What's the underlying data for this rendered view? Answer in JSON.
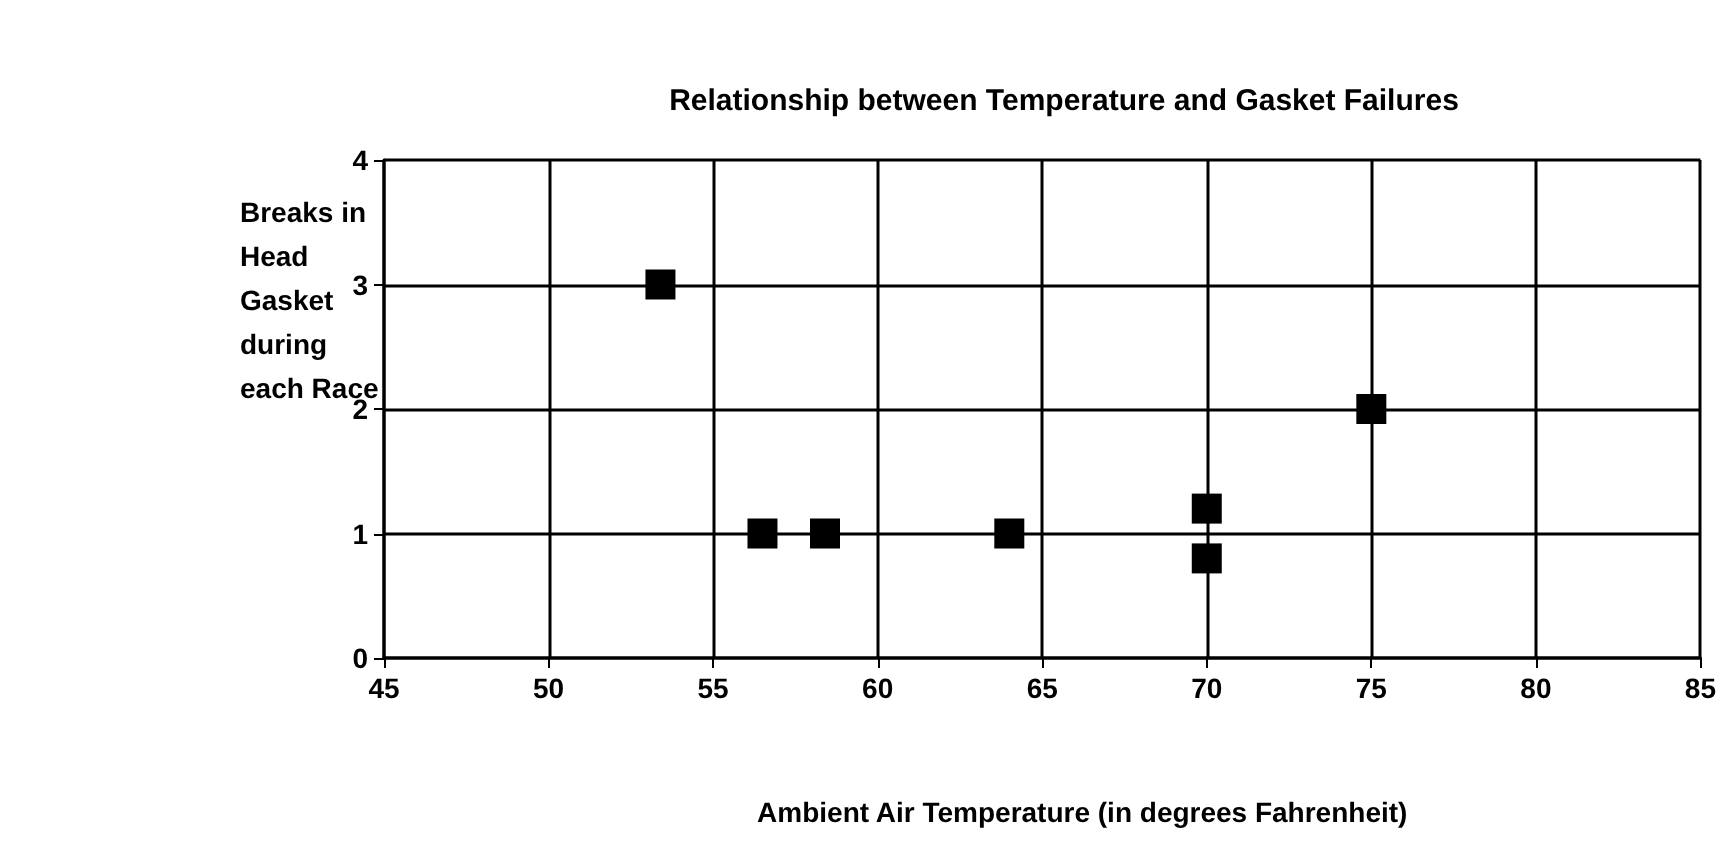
{
  "chart_data": {
    "type": "scatter",
    "title": "Relationship between Temperature and Gasket Failures",
    "xlabel": "Ambient Air Temperature (in degrees Fahrenheit)",
    "ylabel": "Breaks in Head Gasket during each Race",
    "x": [
      53.4,
      56.5,
      58.4,
      64,
      70,
      70,
      75
    ],
    "series": [
      {
        "color": "#000000",
        "values": [
          3,
          1,
          1,
          1,
          1.2,
          0.8,
          2
        ]
      }
    ],
    "xlim": [
      45,
      85
    ],
    "xticks": [
      45,
      50,
      55,
      60,
      65,
      70,
      75,
      80,
      85
    ],
    "ylim": [
      0,
      4
    ],
    "yticks": [
      0,
      1,
      2,
      3,
      4
    ],
    "grid": true,
    "marker": "square"
  }
}
